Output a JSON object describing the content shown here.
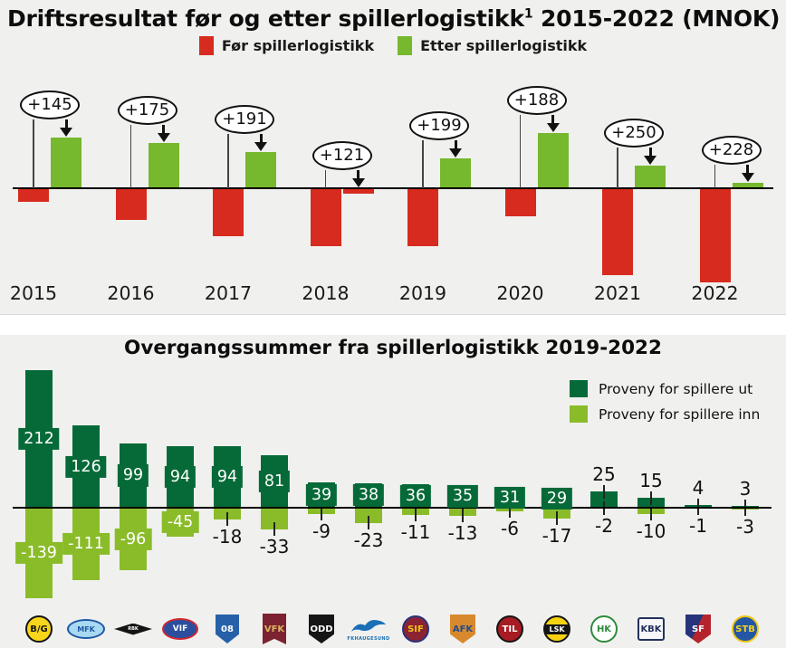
{
  "page": {
    "background": "#f0f0ee"
  },
  "chart_data": [
    {
      "type": "bar",
      "title": "Driftsresultat før og etter spillerlogistikk¹ 2015-2022 (MNOK)",
      "title_main": "Driftsresultat før og etter spillerlogistikk",
      "title_sup": "1",
      "title_rest": " 2015-2022 (MNOK)",
      "unit": "MNOK",
      "categories": [
        "2015",
        "2016",
        "2017",
        "2018",
        "2019",
        "2020",
        "2021",
        "2022"
      ],
      "series": [
        {
          "name": "Før spillerlogistikk",
          "color": "#d62b1e",
          "values": [
            -29,
            -71,
            -108,
            -131,
            -131,
            -62,
            -198,
            -215
          ]
        },
        {
          "name": "Etter spillerlogistikk",
          "color": "#76b82e",
          "negative_color": "#d62b1e",
          "values": [
            116,
            104,
            83,
            -10,
            68,
            126,
            52,
            13
          ]
        }
      ],
      "annotations": [
        "+145",
        "+175",
        "+191",
        "+121",
        "+199",
        "+188",
        "+250",
        "+228"
      ],
      "ylim": [
        -260,
        160
      ],
      "grid": false,
      "legend_position": "top-center",
      "axis_color": "#000000"
    },
    {
      "type": "bar",
      "title": "Overgangssummer fra spillerlogistikk 2019-2022",
      "unit": "MNOK",
      "categories": [
        "Bodø/Glimt",
        "Molde",
        "Rosenborg",
        "Vålerenga",
        "Sarpsborg 08",
        "Viking",
        "Odd",
        "FK Haugesund",
        "Strømsgodset",
        "Aalesund",
        "Tromsø",
        "Lillestrøm",
        "HamKam",
        "Kristiansund",
        "Sandefjord",
        "Stabæk"
      ],
      "series": [
        {
          "name": "Proveny for spillere ut",
          "color": "#066a38",
          "values": [
            212,
            126,
            99,
            94,
            94,
            81,
            39,
            38,
            36,
            35,
            31,
            29,
            25,
            15,
            4,
            3
          ]
        },
        {
          "name": "Proveny for spillere inn",
          "color": "#8abc29",
          "values": [
            -139,
            -111,
            -96,
            -45,
            -18,
            -33,
            -9,
            -23,
            -11,
            -13,
            -6,
            -17,
            -2,
            -10,
            -1,
            -3
          ]
        }
      ],
      "label_box_threshold_ut": 29,
      "label_box_threshold_inn": 45,
      "ylim": [
        -160,
        220
      ],
      "grid": false,
      "legend_position": "right",
      "axis_color": "#000000",
      "clubs": [
        {
          "name": "Bodø/Glimt",
          "abbr": "B/G",
          "shape": "circle",
          "bg": "#f6d51b",
          "border": "#141414",
          "fg": "#141414",
          "w": 30,
          "h": 30
        },
        {
          "name": "Molde",
          "abbr": "MFK",
          "shape": "oval",
          "bg": "#a9d9f2",
          "border": "#1d57a5",
          "fg": "#1d57a5",
          "w": 42,
          "h": 22
        },
        {
          "name": "Rosenborg",
          "abbr": "RBK",
          "shape": "diamond",
          "bg": "#141414",
          "border": "#141414",
          "fg": "#ffffff",
          "w": 42,
          "h": 13
        },
        {
          "name": "Vålerenga",
          "abbr": "VIF",
          "shape": "oval",
          "bg": "#2b4f9e",
          "border": "#cf2630",
          "fg": "#ffffff",
          "w": 40,
          "h": 24
        },
        {
          "name": "Sarpsborg 08",
          "abbr": "08",
          "shape": "shield",
          "bg": "#2660a8",
          "border": "#1d4a85",
          "fg": "#ffffff",
          "w": 26,
          "h": 32
        },
        {
          "name": "Viking",
          "abbr": "VFK",
          "shape": "pennant",
          "bg": "#7c2230",
          "border": "#5d1a24",
          "fg": "#d9b45f",
          "w": 26,
          "h": 34
        },
        {
          "name": "Odd",
          "abbr": "ODD",
          "shape": "shield",
          "bg": "#161616",
          "border": "#000000",
          "fg": "#ffffff",
          "w": 28,
          "h": 32
        },
        {
          "name": "FK Haugesund",
          "abbr": "FKH",
          "shape": "bird",
          "bg": "#1a6fb5",
          "border": "#1a6fb5",
          "fg": "#1a6fb5",
          "w": 40,
          "h": 20,
          "caption": "FKHAUGESUND"
        },
        {
          "name": "Strømsgodset",
          "abbr": "SIF",
          "shape": "circle",
          "bg": "#8c2332",
          "border": "#27337a",
          "fg": "#f0c514",
          "w": 30,
          "h": 30
        },
        {
          "name": "Aalesund",
          "abbr": "AFK",
          "shape": "shield",
          "bg": "#d8892d",
          "border": "#b06f1f",
          "fg": "#234c8b",
          "w": 28,
          "h": 32
        },
        {
          "name": "Tromsø",
          "abbr": "TIL",
          "shape": "circle",
          "bg": "#a61c22",
          "border": "#141414",
          "fg": "#ffffff",
          "w": 30,
          "h": 30
        },
        {
          "name": "Lillestrøm",
          "abbr": "LSK",
          "shape": "circle-band",
          "bg": "#f5d313",
          "border": "#141414",
          "fg": "#ffffff",
          "w": 30,
          "h": 30
        },
        {
          "name": "HamKam",
          "abbr": "HK",
          "shape": "circle",
          "bg": "#ffffff",
          "border": "#2e8b3d",
          "fg": "#2e8b3d",
          "w": 30,
          "h": 30
        },
        {
          "name": "Kristiansund",
          "abbr": "KBK",
          "shape": "square",
          "bg": "#f7f7fa",
          "border": "#23315e",
          "fg": "#23315e",
          "w": 30,
          "h": 26
        },
        {
          "name": "Sandefjord",
          "abbr": "SF",
          "shape": "shield",
          "bg": "#b5242c",
          "border": "#27337a",
          "fg": "#ffffff",
          "w": 28,
          "h": 32,
          "bg2": "#27337a"
        },
        {
          "name": "Stabæk",
          "abbr": "STB",
          "shape": "circle",
          "bg": "#2356a5",
          "border": "#f0c514",
          "fg": "#f7d417",
          "w": 30,
          "h": 30
        }
      ]
    }
  ]
}
